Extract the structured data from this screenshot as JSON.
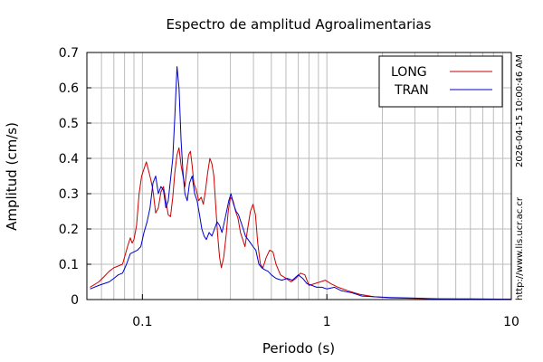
{
  "chart_data": {
    "type": "line",
    "title": "Espectro de amplitud Agroalimentarias",
    "xlabel": "Periodo (s)",
    "ylabel": "Amplitud (cm/s)",
    "x_scale": "log",
    "xlim": [
      0.05,
      10
    ],
    "ylim": [
      0,
      0.7
    ],
    "x_ticks": [
      {
        "value": 0.1,
        "label": "0.1"
      },
      {
        "value": 1,
        "label": "1"
      },
      {
        "value": 10,
        "label": "10"
      }
    ],
    "y_ticks": [
      {
        "value": 0,
        "label": "0"
      },
      {
        "value": 0.1,
        "label": "0.1"
      },
      {
        "value": 0.2,
        "label": "0.2"
      },
      {
        "value": 0.3,
        "label": "0.3"
      },
      {
        "value": 0.4,
        "label": "0.4"
      },
      {
        "value": 0.5,
        "label": "0.5"
      },
      {
        "value": 0.6,
        "label": "0.6"
      },
      {
        "value": 0.7,
        "label": "0.7"
      }
    ],
    "grid": true,
    "legend_position": "top-right",
    "series": [
      {
        "name": "LONG",
        "color": "#cc0000",
        "points": [
          [
            0.052,
            0.035
          ],
          [
            0.058,
            0.05
          ],
          [
            0.062,
            0.065
          ],
          [
            0.066,
            0.08
          ],
          [
            0.07,
            0.09
          ],
          [
            0.074,
            0.095
          ],
          [
            0.078,
            0.1
          ],
          [
            0.08,
            0.12
          ],
          [
            0.083,
            0.15
          ],
          [
            0.086,
            0.175
          ],
          [
            0.088,
            0.16
          ],
          [
            0.09,
            0.17
          ],
          [
            0.093,
            0.21
          ],
          [
            0.096,
            0.3
          ],
          [
            0.099,
            0.35
          ],
          [
            0.102,
            0.37
          ],
          [
            0.105,
            0.39
          ],
          [
            0.108,
            0.365
          ],
          [
            0.111,
            0.34
          ],
          [
            0.114,
            0.31
          ],
          [
            0.118,
            0.245
          ],
          [
            0.122,
            0.26
          ],
          [
            0.126,
            0.305
          ],
          [
            0.13,
            0.32
          ],
          [
            0.134,
            0.28
          ],
          [
            0.138,
            0.24
          ],
          [
            0.142,
            0.235
          ],
          [
            0.146,
            0.29
          ],
          [
            0.15,
            0.36
          ],
          [
            0.154,
            0.41
          ],
          [
            0.158,
            0.43
          ],
          [
            0.162,
            0.38
          ],
          [
            0.166,
            0.35
          ],
          [
            0.17,
            0.32
          ],
          [
            0.174,
            0.37
          ],
          [
            0.178,
            0.41
          ],
          [
            0.182,
            0.42
          ],
          [
            0.186,
            0.38
          ],
          [
            0.19,
            0.33
          ],
          [
            0.196,
            0.31
          ],
          [
            0.202,
            0.28
          ],
          [
            0.208,
            0.29
          ],
          [
            0.214,
            0.27
          ],
          [
            0.22,
            0.31
          ],
          [
            0.226,
            0.36
          ],
          [
            0.232,
            0.4
          ],
          [
            0.238,
            0.385
          ],
          [
            0.244,
            0.35
          ],
          [
            0.25,
            0.26
          ],
          [
            0.256,
            0.18
          ],
          [
            0.262,
            0.12
          ],
          [
            0.268,
            0.09
          ],
          [
            0.276,
            0.12
          ],
          [
            0.284,
            0.18
          ],
          [
            0.292,
            0.25
          ],
          [
            0.3,
            0.29
          ],
          [
            0.31,
            0.28
          ],
          [
            0.32,
            0.25
          ],
          [
            0.33,
            0.23
          ],
          [
            0.34,
            0.19
          ],
          [
            0.35,
            0.17
          ],
          [
            0.36,
            0.15
          ],
          [
            0.372,
            0.2
          ],
          [
            0.385,
            0.25
          ],
          [
            0.398,
            0.27
          ],
          [
            0.41,
            0.24
          ],
          [
            0.422,
            0.16
          ],
          [
            0.436,
            0.1
          ],
          [
            0.45,
            0.09
          ],
          [
            0.47,
            0.12
          ],
          [
            0.49,
            0.14
          ],
          [
            0.51,
            0.135
          ],
          [
            0.53,
            0.1
          ],
          [
            0.56,
            0.07
          ],
          [
            0.6,
            0.06
          ],
          [
            0.64,
            0.05
          ],
          [
            0.68,
            0.06
          ],
          [
            0.72,
            0.075
          ],
          [
            0.76,
            0.07
          ],
          [
            0.8,
            0.04
          ],
          [
            0.86,
            0.045
          ],
          [
            0.92,
            0.05
          ],
          [
            0.98,
            0.055
          ],
          [
            1.05,
            0.045
          ],
          [
            1.15,
            0.035
          ],
          [
            1.3,
            0.025
          ],
          [
            1.5,
            0.015
          ],
          [
            1.8,
            0.008
          ],
          [
            2.2,
            0.005
          ],
          [
            3.0,
            0.003
          ],
          [
            4.0,
            0.002
          ],
          [
            6.0,
            0.001
          ],
          [
            10.0,
            0.001
          ]
        ]
      },
      {
        "name": "TRAN",
        "color": "#0000cc",
        "points": [
          [
            0.052,
            0.03
          ],
          [
            0.058,
            0.04
          ],
          [
            0.062,
            0.045
          ],
          [
            0.066,
            0.05
          ],
          [
            0.07,
            0.06
          ],
          [
            0.074,
            0.07
          ],
          [
            0.078,
            0.075
          ],
          [
            0.082,
            0.1
          ],
          [
            0.086,
            0.13
          ],
          [
            0.09,
            0.135
          ],
          [
            0.094,
            0.14
          ],
          [
            0.098,
            0.15
          ],
          [
            0.102,
            0.19
          ],
          [
            0.106,
            0.22
          ],
          [
            0.11,
            0.26
          ],
          [
            0.114,
            0.33
          ],
          [
            0.118,
            0.35
          ],
          [
            0.122,
            0.3
          ],
          [
            0.126,
            0.32
          ],
          [
            0.13,
            0.31
          ],
          [
            0.134,
            0.26
          ],
          [
            0.138,
            0.28
          ],
          [
            0.142,
            0.34
          ],
          [
            0.146,
            0.4
          ],
          [
            0.15,
            0.52
          ],
          [
            0.154,
            0.66
          ],
          [
            0.158,
            0.6
          ],
          [
            0.162,
            0.45
          ],
          [
            0.166,
            0.36
          ],
          [
            0.17,
            0.3
          ],
          [
            0.175,
            0.28
          ],
          [
            0.18,
            0.33
          ],
          [
            0.186,
            0.35
          ],
          [
            0.192,
            0.3
          ],
          [
            0.198,
            0.28
          ],
          [
            0.204,
            0.24
          ],
          [
            0.21,
            0.2
          ],
          [
            0.216,
            0.18
          ],
          [
            0.222,
            0.17
          ],
          [
            0.23,
            0.19
          ],
          [
            0.238,
            0.18
          ],
          [
            0.246,
            0.2
          ],
          [
            0.254,
            0.22
          ],
          [
            0.262,
            0.21
          ],
          [
            0.27,
            0.19
          ],
          [
            0.278,
            0.22
          ],
          [
            0.286,
            0.25
          ],
          [
            0.294,
            0.28
          ],
          [
            0.302,
            0.3
          ],
          [
            0.312,
            0.27
          ],
          [
            0.322,
            0.25
          ],
          [
            0.332,
            0.24
          ],
          [
            0.342,
            0.22
          ],
          [
            0.352,
            0.2
          ],
          [
            0.362,
            0.18
          ],
          [
            0.374,
            0.17
          ],
          [
            0.386,
            0.16
          ],
          [
            0.398,
            0.15
          ],
          [
            0.412,
            0.14
          ],
          [
            0.428,
            0.1
          ],
          [
            0.444,
            0.09
          ],
          [
            0.46,
            0.085
          ],
          [
            0.48,
            0.08
          ],
          [
            0.5,
            0.07
          ],
          [
            0.53,
            0.06
          ],
          [
            0.57,
            0.055
          ],
          [
            0.61,
            0.06
          ],
          [
            0.65,
            0.055
          ],
          [
            0.7,
            0.07
          ],
          [
            0.74,
            0.06
          ],
          [
            0.78,
            0.045
          ],
          [
            0.83,
            0.04
          ],
          [
            0.88,
            0.035
          ],
          [
            0.94,
            0.035
          ],
          [
            1.0,
            0.03
          ],
          [
            1.1,
            0.035
          ],
          [
            1.2,
            0.025
          ],
          [
            1.35,
            0.02
          ],
          [
            1.55,
            0.01
          ],
          [
            1.8,
            0.008
          ],
          [
            2.2,
            0.006
          ],
          [
            3.0,
            0.004
          ],
          [
            4.0,
            0.002
          ],
          [
            6.0,
            0.002
          ],
          [
            10.0,
            0.001
          ]
        ]
      }
    ]
  },
  "side_text": {
    "timestamp": "2026-04-15 10:00:46 AM",
    "url": "http://www.lis.ucr.ac.cr"
  }
}
